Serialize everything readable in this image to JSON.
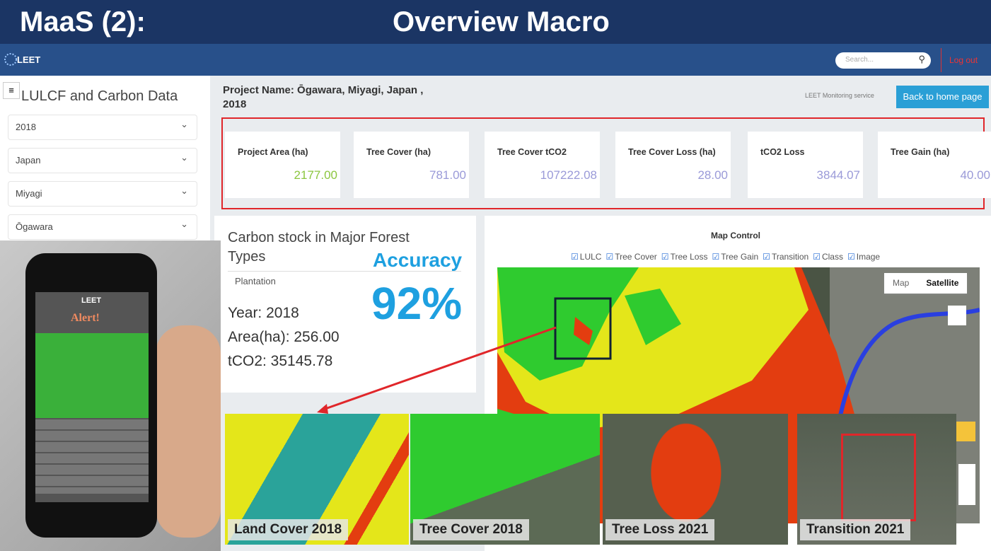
{
  "slide": {
    "title_left": "MaaS (2):",
    "title_right": "Overview Macro"
  },
  "navbar": {
    "brand": "LEET",
    "search_placeholder": "Search...",
    "logout": "Log out"
  },
  "sidebar": {
    "title": "LULCF and Carbon Data",
    "filters": [
      "2018",
      "Japan",
      "Miyagi",
      "Ōgawara"
    ]
  },
  "project": {
    "name": "Project Name: Ōgawara, Miyagi, Japan , 2018",
    "service": "LEET Monitoring service",
    "back_button": "Back to home page"
  },
  "stats": [
    {
      "label": "Project Area (ha)",
      "value": "2177.00"
    },
    {
      "label": "Tree Cover (ha)",
      "value": "781.00"
    },
    {
      "label": "Tree Cover tCO2",
      "value": "107222.08"
    },
    {
      "label": "Tree Cover Loss (ha)",
      "value": "28.00"
    },
    {
      "label": "tCO2 Loss",
      "value": "3844.07"
    },
    {
      "label": "Tree Gain (ha)",
      "value": "40.00"
    }
  ],
  "carbon_card": {
    "title": "Carbon stock in Major Forest Types",
    "forest_type": "Plantation",
    "year": "Year: 2018",
    "area": "Area(ha): 256.00",
    "tco2": "tCO2: 35145.78"
  },
  "accuracy": {
    "label": "Accuracy",
    "value": "92%"
  },
  "map_control": {
    "title": "Map Control",
    "layers": [
      "LULC",
      "Tree Cover",
      "Tree Loss",
      "Tree Gain",
      "Transition",
      "Class",
      "Image"
    ],
    "map_types": [
      "Map",
      "Satellite"
    ]
  },
  "thumbnails": [
    "Land Cover 2018",
    "Tree Cover 2018",
    "Tree Loss 2021",
    "Transition 2021"
  ],
  "phone": {
    "brand": "LEET",
    "alert": "Alert!"
  }
}
